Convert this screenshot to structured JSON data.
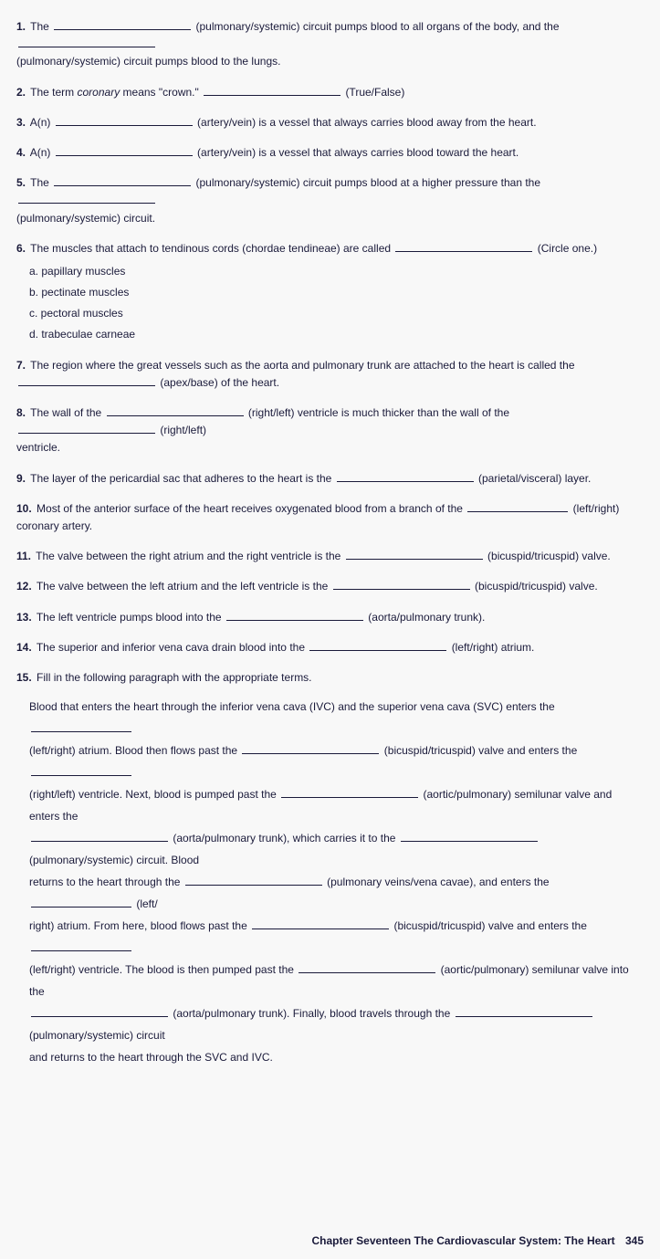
{
  "q1": {
    "num": "1.",
    "t1": "The",
    "t2": "(pulmonary/systemic) circuit pumps blood to all organs of the body, and the",
    "t3": "(pulmonary/systemic) circuit pumps blood to the lungs."
  },
  "q2": {
    "num": "2.",
    "t1": "The term",
    "italic": "coronary",
    "t2": "means \"crown.\"",
    "t3": "(True/False)"
  },
  "q3": {
    "num": "3.",
    "t1": "A(n)",
    "t2": "(artery/vein) is a vessel that always carries blood away from the heart."
  },
  "q4": {
    "num": "4.",
    "t1": "A(n)",
    "t2": "(artery/vein) is a vessel that always carries blood toward the heart."
  },
  "q5": {
    "num": "5.",
    "t1": "The",
    "t2": "(pulmonary/systemic) circuit pumps blood at a higher pressure than the",
    "t3": "(pulmonary/systemic) circuit."
  },
  "q6": {
    "num": "6.",
    "t1": "The muscles that attach to tendinous cords (chordae tendineae) are called",
    "t2": "(Circle one.)",
    "a": "a. papillary muscles",
    "b": "b. pectinate muscles",
    "c": "c. pectoral muscles",
    "d": "d. trabeculae carneae"
  },
  "q7": {
    "num": "7.",
    "t1": "The region where the great vessels such as the aorta and pulmonary trunk are attached to the heart is called the",
    "t2": "(apex/base) of the heart."
  },
  "q8": {
    "num": "8.",
    "t1": "The wall of the",
    "t2": "(right/left) ventricle is much thicker than the wall of the",
    "t3": "(right/left)",
    "t4": "ventricle."
  },
  "q9": {
    "num": "9.",
    "t1": "The layer of the pericardial sac that adheres to the heart is the",
    "t2": "(parietal/visceral) layer."
  },
  "q10": {
    "num": "10.",
    "t1": "Most of the anterior surface of the heart receives oxygenated blood from a branch of the",
    "t2": "(left/right) coronary artery."
  },
  "q11": {
    "num": "11.",
    "t1": "The valve between the right atrium and the right ventricle is the",
    "t2": "(bicuspid/tricuspid) valve."
  },
  "q12": {
    "num": "12.",
    "t1": "The valve between the left atrium and the left ventricle is the",
    "t2": "(bicuspid/tricuspid) valve."
  },
  "q13": {
    "num": "13.",
    "t1": "The left ventricle pumps blood into the",
    "t2": "(aorta/pulmonary trunk)."
  },
  "q14": {
    "num": "14.",
    "t1": "The superior and inferior vena cava drain blood into the",
    "t2": "(left/right) atrium."
  },
  "q15": {
    "num": "15.",
    "t1": "Fill in the following paragraph with the appropriate terms.",
    "p1": "Blood that enters the heart through the inferior vena cava (IVC) and the superior vena cava (SVC) enters the",
    "p2": "(left/right) atrium. Blood then flows past the",
    "p3": "(bicuspid/tricuspid) valve and enters the",
    "p4": "(right/left) ventricle. Next, blood is pumped past the",
    "p5": "(aortic/pulmonary) semilunar valve and enters the",
    "p6": "(aorta/pulmonary trunk), which carries it to the",
    "p7": "(pulmonary/systemic) circuit. Blood",
    "p8": "returns to the heart through the",
    "p9": "(pulmonary veins/vena cavae), and enters the",
    "p10": "(left/",
    "p11": "right) atrium. From here, blood flows past the",
    "p12": "(bicuspid/tricuspid) valve and enters the",
    "p13": "(left/right) ventricle. The blood is then pumped past the",
    "p14": "(aortic/pulmonary) semilunar valve into the",
    "p15": "(aorta/pulmonary trunk). Finally, blood travels through the",
    "p16": "(pulmonary/systemic) circuit",
    "p17": "and returns to the heart through the SVC and IVC."
  },
  "footer": {
    "chapter": "Chapter Seventeen",
    "title": "The Cardiovascular System: The Heart",
    "page": "345"
  }
}
